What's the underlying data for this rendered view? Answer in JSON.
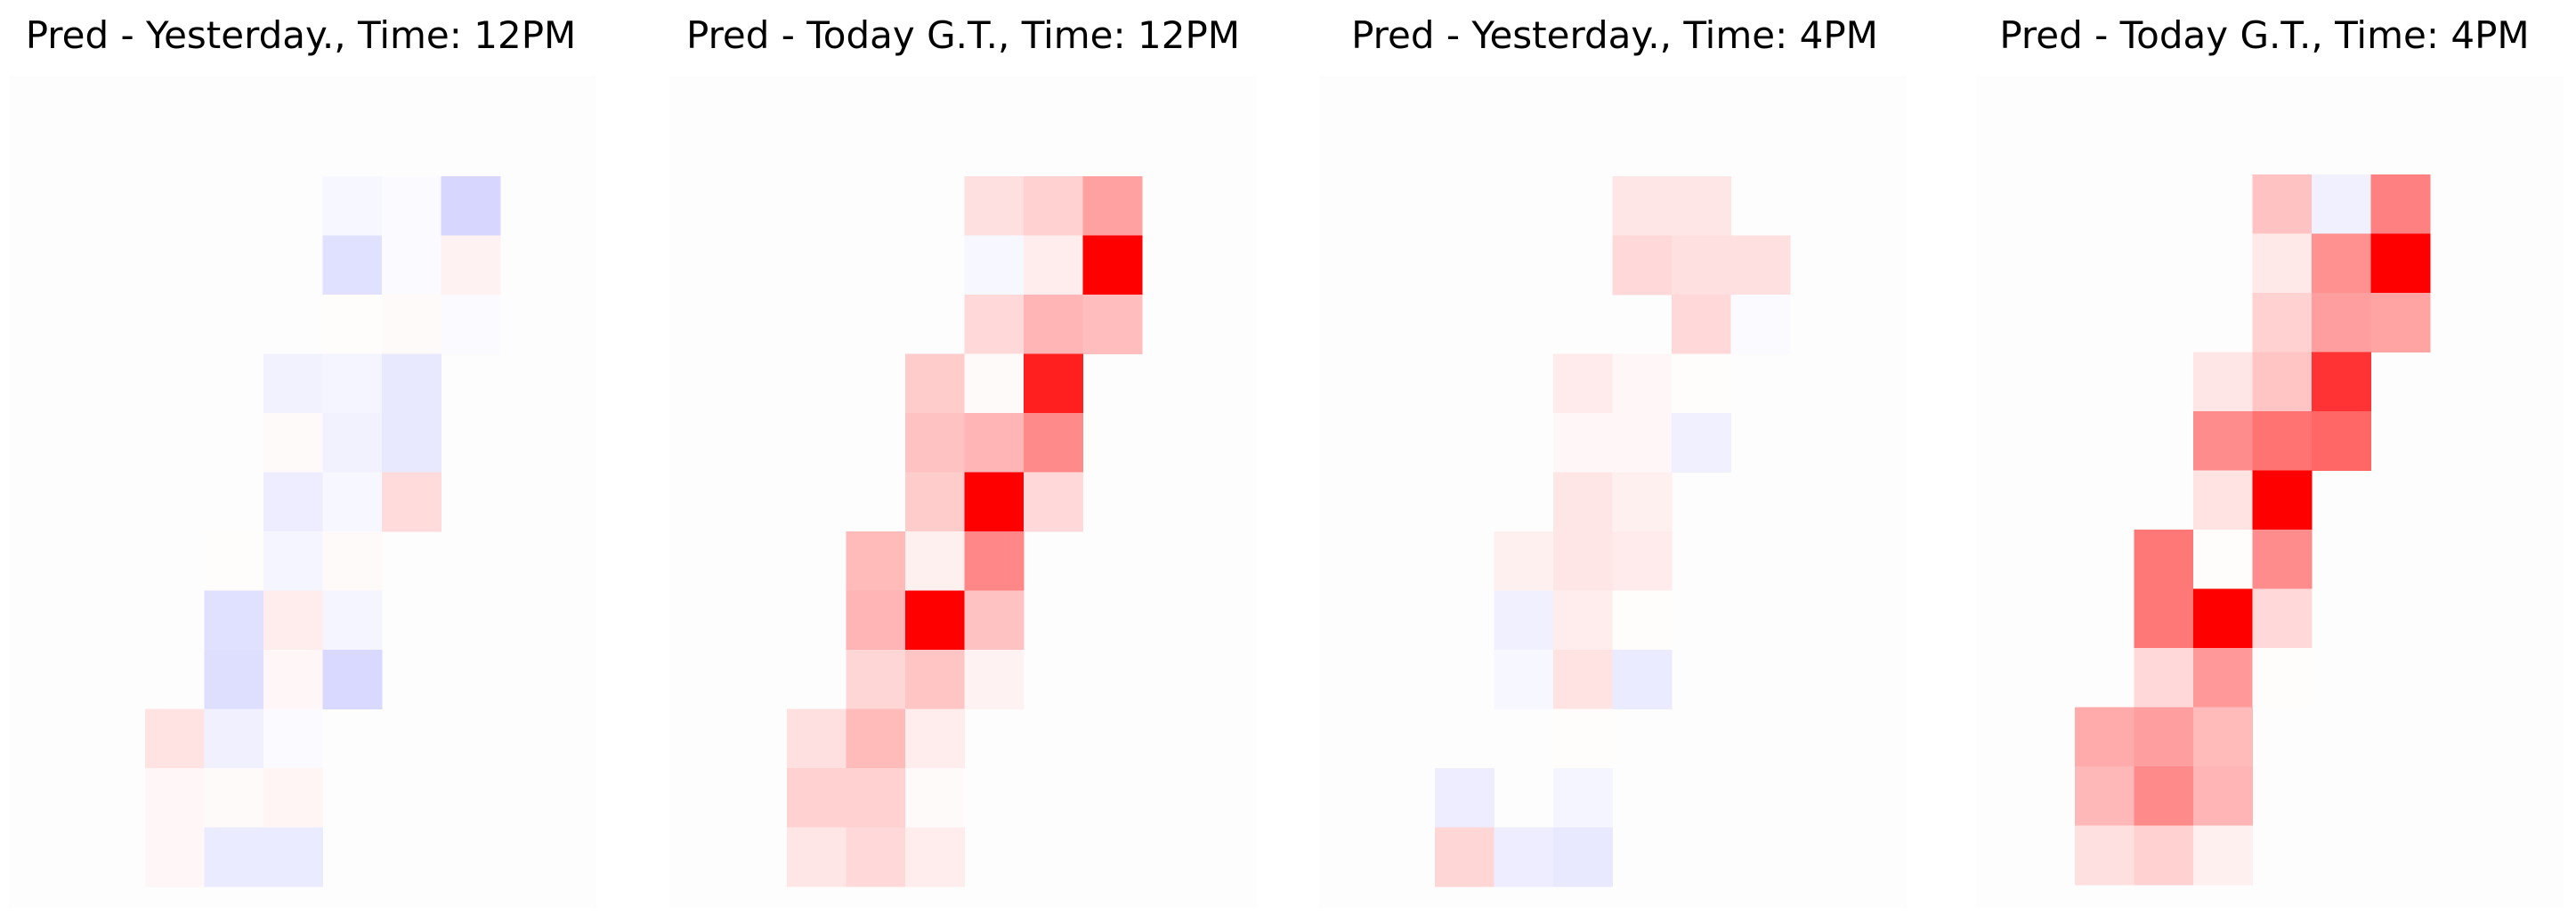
{
  "color_scale": {
    "positive": "#ff0000",
    "negative": "#0000ff",
    "zero": "#ffffff"
  },
  "chart_data": [
    {
      "type": "heatmap",
      "title": "Pred - Yesterday., Time: 12PM",
      "rows": 12,
      "cols": 6,
      "value_range": [
        -1,
        1
      ],
      "cells": [
        {
          "r": 0,
          "c": 3,
          "v": -0.03
        },
        {
          "r": 0,
          "c": 4,
          "v": -0.02
        },
        {
          "r": 0,
          "c": 5,
          "v": -0.16
        },
        {
          "r": 1,
          "c": 3,
          "v": -0.12
        },
        {
          "r": 1,
          "c": 4,
          "v": -0.02
        },
        {
          "r": 1,
          "c": 5,
          "v": 0.05
        },
        {
          "r": 2,
          "c": 3,
          "v": 0.01
        },
        {
          "r": 2,
          "c": 4,
          "v": 0.02
        },
        {
          "r": 2,
          "c": 5,
          "v": -0.02
        },
        {
          "r": 3,
          "c": 2,
          "v": -0.05
        },
        {
          "r": 3,
          "c": 3,
          "v": -0.04
        },
        {
          "r": 3,
          "c": 4,
          "v": -0.09
        },
        {
          "r": 4,
          "c": 2,
          "v": 0.02
        },
        {
          "r": 4,
          "c": 3,
          "v": -0.05
        },
        {
          "r": 4,
          "c": 4,
          "v": -0.09
        },
        {
          "r": 5,
          "c": 2,
          "v": -0.07
        },
        {
          "r": 5,
          "c": 3,
          "v": -0.03
        },
        {
          "r": 5,
          "c": 4,
          "v": 0.14
        },
        {
          "r": 6,
          "c": 1,
          "v": 0.01
        },
        {
          "r": 6,
          "c": 2,
          "v": -0.04
        },
        {
          "r": 6,
          "c": 3,
          "v": 0.02
        },
        {
          "r": 7,
          "c": 1,
          "v": -0.12
        },
        {
          "r": 7,
          "c": 2,
          "v": 0.07
        },
        {
          "r": 7,
          "c": 3,
          "v": -0.04
        },
        {
          "r": 8,
          "c": 1,
          "v": -0.13
        },
        {
          "r": 8,
          "c": 2,
          "v": 0.03
        },
        {
          "r": 8,
          "c": 3,
          "v": -0.15
        },
        {
          "r": 9,
          "c": 0,
          "v": 0.11
        },
        {
          "r": 9,
          "c": 1,
          "v": -0.06
        },
        {
          "r": 9,
          "c": 2,
          "v": -0.02
        },
        {
          "r": 10,
          "c": 0,
          "v": 0.03
        },
        {
          "r": 10,
          "c": 1,
          "v": 0.02
        },
        {
          "r": 10,
          "c": 2,
          "v": 0.04
        },
        {
          "r": 11,
          "c": 0,
          "v": 0.03
        },
        {
          "r": 11,
          "c": 1,
          "v": -0.08
        },
        {
          "r": 11,
          "c": 2,
          "v": -0.08
        }
      ]
    },
    {
      "type": "heatmap",
      "title": "Pred - Today G.T., Time: 12PM",
      "rows": 12,
      "cols": 6,
      "value_range": [
        -1,
        1
      ],
      "cells": [
        {
          "r": 0,
          "c": 3,
          "v": 0.12
        },
        {
          "r": 0,
          "c": 4,
          "v": 0.18
        },
        {
          "r": 0,
          "c": 5,
          "v": 0.37
        },
        {
          "r": 1,
          "c": 3,
          "v": -0.03
        },
        {
          "r": 1,
          "c": 4,
          "v": 0.07
        },
        {
          "r": 1,
          "c": 5,
          "v": 1.0
        },
        {
          "r": 2,
          "c": 3,
          "v": 0.15
        },
        {
          "r": 2,
          "c": 4,
          "v": 0.29
        },
        {
          "r": 2,
          "c": 5,
          "v": 0.26
        },
        {
          "r": 3,
          "c": 2,
          "v": 0.2
        },
        {
          "r": 3,
          "c": 3,
          "v": 0.02
        },
        {
          "r": 3,
          "c": 4,
          "v": 0.88
        },
        {
          "r": 4,
          "c": 2,
          "v": 0.24
        },
        {
          "r": 4,
          "c": 3,
          "v": 0.29
        },
        {
          "r": 4,
          "c": 4,
          "v": 0.46
        },
        {
          "r": 5,
          "c": 2,
          "v": 0.2
        },
        {
          "r": 5,
          "c": 3,
          "v": 1.0
        },
        {
          "r": 5,
          "c": 4,
          "v": 0.15
        },
        {
          "r": 6,
          "c": 1,
          "v": 0.27
        },
        {
          "r": 6,
          "c": 2,
          "v": 0.06
        },
        {
          "r": 6,
          "c": 3,
          "v": 0.47
        },
        {
          "r": 7,
          "c": 1,
          "v": 0.29
        },
        {
          "r": 7,
          "c": 2,
          "v": 1.0
        },
        {
          "r": 7,
          "c": 3,
          "v": 0.24
        },
        {
          "r": 8,
          "c": 1,
          "v": 0.16
        },
        {
          "r": 8,
          "c": 2,
          "v": 0.23
        },
        {
          "r": 8,
          "c": 3,
          "v": 0.05
        },
        {
          "r": 9,
          "c": 0,
          "v": 0.12
        },
        {
          "r": 9,
          "c": 1,
          "v": 0.27
        },
        {
          "r": 9,
          "c": 2,
          "v": 0.07
        },
        {
          "r": 10,
          "c": 0,
          "v": 0.18
        },
        {
          "r": 10,
          "c": 1,
          "v": 0.18
        },
        {
          "r": 10,
          "c": 2,
          "v": 0.02
        },
        {
          "r": 11,
          "c": 0,
          "v": 0.1
        },
        {
          "r": 11,
          "c": 1,
          "v": 0.15
        },
        {
          "r": 11,
          "c": 2,
          "v": 0.07
        }
      ]
    },
    {
      "type": "heatmap",
      "title": "Pred - Yesterday., Time: 4PM",
      "rows": 12,
      "cols": 6,
      "value_range": [
        -1,
        1
      ],
      "cells": [
        {
          "r": 0,
          "c": 3,
          "v": 0.1
        },
        {
          "r": 0,
          "c": 4,
          "v": 0.1
        },
        {
          "r": 1,
          "c": 3,
          "v": 0.15
        },
        {
          "r": 1,
          "c": 4,
          "v": 0.12
        },
        {
          "r": 1,
          "c": 5,
          "v": 0.12
        },
        {
          "r": 2,
          "c": 4,
          "v": 0.15
        },
        {
          "r": 2,
          "c": 5,
          "v": -0.02
        },
        {
          "r": 3,
          "c": 2,
          "v": 0.08
        },
        {
          "r": 3,
          "c": 3,
          "v": 0.03
        },
        {
          "r": 3,
          "c": 4,
          "v": 0.01
        },
        {
          "r": 4,
          "c": 2,
          "v": 0.03
        },
        {
          "r": 4,
          "c": 3,
          "v": 0.03
        },
        {
          "r": 4,
          "c": 4,
          "v": -0.06
        },
        {
          "r": 5,
          "c": 2,
          "v": 0.1
        },
        {
          "r": 5,
          "c": 3,
          "v": 0.06
        },
        {
          "r": 6,
          "c": 1,
          "v": 0.06
        },
        {
          "r": 6,
          "c": 2,
          "v": 0.1
        },
        {
          "r": 6,
          "c": 3,
          "v": 0.08
        },
        {
          "r": 7,
          "c": 1,
          "v": -0.06
        },
        {
          "r": 7,
          "c": 2,
          "v": 0.07
        },
        {
          "r": 7,
          "c": 3,
          "v": 0.01
        },
        {
          "r": 8,
          "c": 1,
          "v": -0.03
        },
        {
          "r": 8,
          "c": 2,
          "v": 0.11
        },
        {
          "r": 8,
          "c": 3,
          "v": -0.08
        },
        {
          "r": 9,
          "c": 2,
          "v": 0.01
        },
        {
          "r": 10,
          "c": 0,
          "v": -0.07
        },
        {
          "r": 10,
          "c": 2,
          "v": -0.04
        },
        {
          "r": 11,
          "c": 0,
          "v": 0.16
        },
        {
          "r": 11,
          "c": 1,
          "v": -0.07
        },
        {
          "r": 11,
          "c": 2,
          "v": -0.09
        }
      ]
    },
    {
      "type": "heatmap",
      "title": "Pred - Today G.T., Time: 4PM",
      "rows": 12,
      "cols": 6,
      "value_range": [
        -1,
        1
      ],
      "cells": [
        {
          "r": 0,
          "c": 3,
          "v": 0.24
        },
        {
          "r": 0,
          "c": 4,
          "v": -0.06
        },
        {
          "r": 0,
          "c": 5,
          "v": 0.5
        },
        {
          "r": 1,
          "c": 3,
          "v": 0.09
        },
        {
          "r": 1,
          "c": 4,
          "v": 0.43
        },
        {
          "r": 1,
          "c": 5,
          "v": 1.0
        },
        {
          "r": 2,
          "c": 3,
          "v": 0.18
        },
        {
          "r": 2,
          "c": 4,
          "v": 0.38
        },
        {
          "r": 2,
          "c": 5,
          "v": 0.36
        },
        {
          "r": 3,
          "c": 2,
          "v": 0.1
        },
        {
          "r": 3,
          "c": 3,
          "v": 0.23
        },
        {
          "r": 3,
          "c": 4,
          "v": 0.8
        },
        {
          "r": 4,
          "c": 2,
          "v": 0.45
        },
        {
          "r": 4,
          "c": 3,
          "v": 0.55
        },
        {
          "r": 4,
          "c": 4,
          "v": 0.6
        },
        {
          "r": 5,
          "c": 2,
          "v": 0.11
        },
        {
          "r": 5,
          "c": 3,
          "v": 1.0
        },
        {
          "r": 6,
          "c": 1,
          "v": 0.53
        },
        {
          "r": 6,
          "c": 2,
          "v": 0.01
        },
        {
          "r": 6,
          "c": 3,
          "v": 0.45
        },
        {
          "r": 7,
          "c": 1,
          "v": 0.53
        },
        {
          "r": 7,
          "c": 2,
          "v": 1.0
        },
        {
          "r": 7,
          "c": 3,
          "v": 0.15
        },
        {
          "r": 8,
          "c": 1,
          "v": 0.15
        },
        {
          "r": 8,
          "c": 2,
          "v": 0.4
        },
        {
          "r": 8,
          "c": 3,
          "v": 0.01
        },
        {
          "r": 9,
          "c": 0,
          "v": 0.33
        },
        {
          "r": 9,
          "c": 1,
          "v": 0.38
        },
        {
          "r": 9,
          "c": 2,
          "v": 0.27
        },
        {
          "r": 10,
          "c": 0,
          "v": 0.28
        },
        {
          "r": 10,
          "c": 1,
          "v": 0.46
        },
        {
          "r": 10,
          "c": 2,
          "v": 0.29
        },
        {
          "r": 11,
          "c": 0,
          "v": 0.12
        },
        {
          "r": 11,
          "c": 1,
          "v": 0.18
        },
        {
          "r": 11,
          "c": 2,
          "v": 0.06
        }
      ]
    }
  ]
}
